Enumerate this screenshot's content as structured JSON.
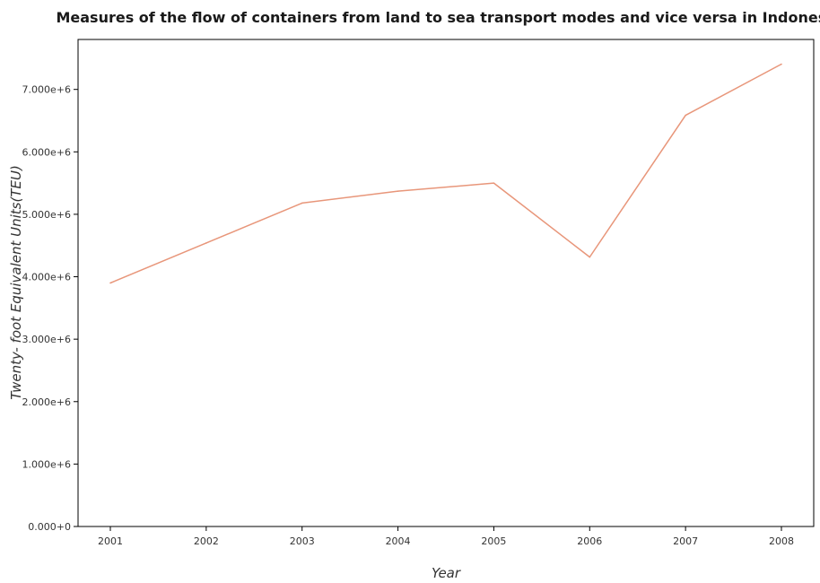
{
  "chart_data": {
    "type": "line",
    "title": "Measures of the flow of containers from land to sea transport modes and vice versa in Indonesia",
    "xlabel": "Year",
    "ylabel": "Twenty- foot Equivalent Units(TEU)",
    "categories": [
      "2001",
      "2002",
      "2003",
      "2004",
      "2005",
      "2006",
      "2007",
      "2008"
    ],
    "series": [
      {
        "values": [
          3900000,
          4540000,
          5180000,
          5370000,
          5500000,
          4315000,
          6585000,
          7405000
        ],
        "color": "#e8967a"
      }
    ],
    "ylim": [
      0,
      7800000
    ],
    "yticks": [
      0,
      1000000,
      2000000,
      3000000,
      4000000,
      5000000,
      6000000,
      7000000
    ],
    "ytick_labels": [
      "0.000+0",
      "1.000e+6",
      "2.000e+6",
      "3.000e+6",
      "4.000e+6",
      "5.000e+6",
      "6.000e+6",
      "7.000e+6"
    ],
    "grid": false,
    "legend": "none"
  }
}
